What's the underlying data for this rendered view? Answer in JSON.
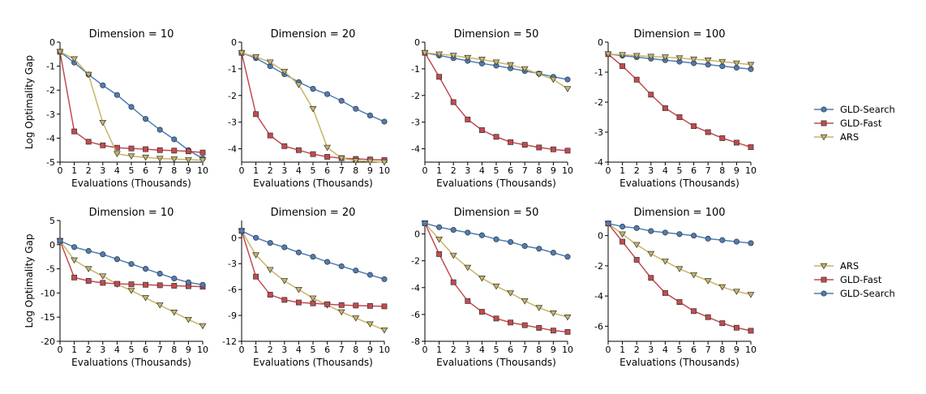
{
  "figure": {
    "series_styles": {
      "GLD-Search": {
        "color": "#4f7cb5",
        "marker": "circle"
      },
      "GLD-Fast": {
        "color": "#c34a4f",
        "marker": "square"
      },
      "ARS": {
        "color": "#c8b468",
        "marker": "triangle"
      }
    },
    "legends": [
      {
        "row": 0,
        "entries": [
          "GLD-Search",
          "GLD-Fast",
          "ARS"
        ]
      },
      {
        "row": 1,
        "entries": [
          "ARS",
          "GLD-Fast",
          "GLD-Search"
        ]
      }
    ]
  },
  "chart_data": [
    {
      "type": "line",
      "row": 0,
      "col": 0,
      "title": "Dimension = 10",
      "xlabel": "Evaluations (Thousands)",
      "ylabel": "Log Optimality Gap",
      "xlim": [
        0,
        10
      ],
      "ylim": [
        -5,
        0
      ],
      "xticks": [
        0,
        1,
        2,
        3,
        4,
        5,
        6,
        7,
        8,
        9,
        10
      ],
      "yticks": [
        0,
        -1,
        -2,
        -3,
        -4,
        -5
      ],
      "x": [
        0,
        1,
        2,
        3,
        4,
        5,
        6,
        7,
        8,
        9,
        10
      ],
      "series": [
        {
          "name": "GLD-Search",
          "values": [
            -0.4,
            -0.85,
            -1.35,
            -1.8,
            -2.2,
            -2.7,
            -3.2,
            -3.65,
            -4.05,
            -4.5,
            -4.85
          ]
        },
        {
          "name": "GLD-Fast",
          "values": [
            -0.4,
            -3.72,
            -4.15,
            -4.3,
            -4.4,
            -4.43,
            -4.46,
            -4.5,
            -4.52,
            -4.55,
            -4.6
          ]
        },
        {
          "name": "ARS",
          "values": [
            -0.4,
            -0.7,
            -1.35,
            -3.35,
            -4.65,
            -4.75,
            -4.8,
            -4.85,
            -4.87,
            -4.9,
            -4.92
          ]
        }
      ]
    },
    {
      "type": "line",
      "row": 0,
      "col": 1,
      "title": "Dimension = 20",
      "xlabel": "Evaluations (Thousands)",
      "ylabel": "",
      "xlim": [
        0,
        10
      ],
      "ylim": [
        -4.5,
        0
      ],
      "xticks": [
        0,
        1,
        2,
        3,
        4,
        5,
        6,
        7,
        8,
        9,
        10
      ],
      "yticks": [
        0,
        -1,
        -2,
        -3,
        -4
      ],
      "x": [
        0,
        1,
        2,
        3,
        4,
        5,
        6,
        7,
        8,
        9,
        10
      ],
      "series": [
        {
          "name": "GLD-Search",
          "values": [
            -0.4,
            -0.6,
            -0.9,
            -1.2,
            -1.5,
            -1.75,
            -1.95,
            -2.2,
            -2.5,
            -2.75,
            -2.98
          ]
        },
        {
          "name": "GLD-Fast",
          "values": [
            -0.4,
            -2.7,
            -3.5,
            -3.9,
            -4.05,
            -4.2,
            -4.3,
            -4.35,
            -4.38,
            -4.4,
            -4.42
          ]
        },
        {
          "name": "ARS",
          "values": [
            -0.4,
            -0.55,
            -0.75,
            -1.1,
            -1.6,
            -2.5,
            -3.95,
            -4.35,
            -4.45,
            -4.47,
            -4.5
          ]
        }
      ]
    },
    {
      "type": "line",
      "row": 0,
      "col": 2,
      "title": "Dimension = 50",
      "xlabel": "Evaluations (Thousands)",
      "ylabel": "",
      "xlim": [
        0,
        10
      ],
      "ylim": [
        -4.5,
        0
      ],
      "xticks": [
        0,
        1,
        2,
        3,
        4,
        5,
        6,
        7,
        8,
        9,
        10
      ],
      "yticks": [
        0,
        -1,
        -2,
        -3,
        -4
      ],
      "x": [
        0,
        1,
        2,
        3,
        4,
        5,
        6,
        7,
        8,
        9,
        10
      ],
      "series": [
        {
          "name": "GLD-Search",
          "values": [
            -0.4,
            -0.5,
            -0.6,
            -0.7,
            -0.8,
            -0.88,
            -0.98,
            -1.08,
            -1.18,
            -1.3,
            -1.4
          ]
        },
        {
          "name": "GLD-Fast",
          "values": [
            -0.4,
            -1.3,
            -2.25,
            -2.9,
            -3.3,
            -3.55,
            -3.75,
            -3.85,
            -3.95,
            -4.02,
            -4.07
          ]
        },
        {
          "name": "ARS",
          "values": [
            -0.4,
            -0.45,
            -0.5,
            -0.58,
            -0.65,
            -0.75,
            -0.85,
            -1.0,
            -1.2,
            -1.4,
            -1.75
          ]
        }
      ]
    },
    {
      "type": "line",
      "row": 0,
      "col": 3,
      "title": "Dimension = 100",
      "xlabel": "Evaluations (Thousands)",
      "ylabel": "",
      "xlim": [
        0,
        10
      ],
      "ylim": [
        -4,
        0
      ],
      "xticks": [
        0,
        1,
        2,
        3,
        4,
        5,
        6,
        7,
        8,
        9,
        10
      ],
      "yticks": [
        0,
        -1,
        -2,
        -3,
        -4
      ],
      "x": [
        0,
        1,
        2,
        3,
        4,
        5,
        6,
        7,
        8,
        9,
        10
      ],
      "series": [
        {
          "name": "GLD-Search",
          "values": [
            -0.4,
            -0.45,
            -0.5,
            -0.55,
            -0.6,
            -0.65,
            -0.7,
            -0.75,
            -0.8,
            -0.85,
            -0.9
          ]
        },
        {
          "name": "GLD-Fast",
          "values": [
            -0.4,
            -0.8,
            -1.25,
            -1.75,
            -2.2,
            -2.5,
            -2.8,
            -3.0,
            -3.2,
            -3.35,
            -3.5
          ]
        },
        {
          "name": "ARS",
          "values": [
            -0.4,
            -0.42,
            -0.45,
            -0.48,
            -0.5,
            -0.53,
            -0.57,
            -0.6,
            -0.65,
            -0.7,
            -0.75
          ]
        }
      ]
    },
    {
      "type": "line",
      "row": 1,
      "col": 0,
      "title": "Dimension = 10",
      "xlabel": "Evaluations (Thousands)",
      "ylabel": "Log Optimality Gap",
      "xlim": [
        0,
        10
      ],
      "ylim": [
        -20,
        5
      ],
      "xticks": [
        0,
        1,
        2,
        3,
        4,
        5,
        6,
        7,
        8,
        9,
        10
      ],
      "yticks": [
        5,
        0,
        -5,
        -10,
        -15,
        -20
      ],
      "x": [
        0,
        1,
        2,
        3,
        4,
        5,
        6,
        7,
        8,
        9,
        10
      ],
      "series": [
        {
          "name": "ARS",
          "values": [
            0.8,
            -3.2,
            -5.0,
            -6.5,
            -8.2,
            -9.5,
            -11.0,
            -12.5,
            -14.0,
            -15.5,
            -16.8
          ]
        },
        {
          "name": "GLD-Fast",
          "values": [
            0.8,
            -6.8,
            -7.5,
            -7.9,
            -8.1,
            -8.2,
            -8.3,
            -8.4,
            -8.5,
            -8.6,
            -8.7
          ]
        },
        {
          "name": "GLD-Search",
          "values": [
            0.8,
            -0.5,
            -1.3,
            -2.0,
            -3.0,
            -4.0,
            -5.0,
            -6.0,
            -7.0,
            -7.8,
            -8.3
          ]
        }
      ]
    },
    {
      "type": "line",
      "row": 1,
      "col": 1,
      "title": "Dimension = 20",
      "xlabel": "Evaluations (Thousands)",
      "ylabel": "",
      "xlim": [
        0,
        10
      ],
      "ylim": [
        -12,
        2
      ],
      "xticks": [
        0,
        1,
        2,
        3,
        4,
        5,
        6,
        7,
        8,
        9,
        10
      ],
      "yticks": [
        0,
        -3,
        -6,
        -9,
        -12
      ],
      "x": [
        0,
        1,
        2,
        3,
        4,
        5,
        6,
        7,
        8,
        9,
        10
      ],
      "series": [
        {
          "name": "ARS",
          "values": [
            0.8,
            -2.0,
            -3.7,
            -5.0,
            -6.0,
            -7.0,
            -7.8,
            -8.6,
            -9.3,
            -10.0,
            -10.7
          ]
        },
        {
          "name": "GLD-Fast",
          "values": [
            0.8,
            -4.5,
            -6.6,
            -7.2,
            -7.5,
            -7.6,
            -7.7,
            -7.8,
            -7.85,
            -7.9,
            -7.95
          ]
        },
        {
          "name": "GLD-Search",
          "values": [
            0.8,
            0.0,
            -0.6,
            -1.1,
            -1.7,
            -2.2,
            -2.8,
            -3.3,
            -3.8,
            -4.3,
            -4.8
          ]
        }
      ]
    },
    {
      "type": "line",
      "row": 1,
      "col": 2,
      "title": "Dimension = 50",
      "xlabel": "Evaluations (Thousands)",
      "ylabel": "",
      "xlim": [
        0,
        10
      ],
      "ylim": [
        -8,
        1
      ],
      "xticks": [
        0,
        1,
        2,
        3,
        4,
        5,
        6,
        7,
        8,
        9,
        10
      ],
      "yticks": [
        0,
        -2,
        -4,
        -6,
        -8
      ],
      "x": [
        0,
        1,
        2,
        3,
        4,
        5,
        6,
        7,
        8,
        9,
        10
      ],
      "series": [
        {
          "name": "ARS",
          "values": [
            0.8,
            -0.4,
            -1.6,
            -2.5,
            -3.3,
            -3.9,
            -4.4,
            -5.0,
            -5.5,
            -5.9,
            -6.2
          ]
        },
        {
          "name": "GLD-Fast",
          "values": [
            0.8,
            -1.5,
            -3.6,
            -5.0,
            -5.8,
            -6.3,
            -6.6,
            -6.8,
            -7.0,
            -7.2,
            -7.3
          ]
        },
        {
          "name": "GLD-Search",
          "values": [
            0.8,
            0.5,
            0.3,
            0.1,
            -0.1,
            -0.4,
            -0.6,
            -0.9,
            -1.1,
            -1.4,
            -1.7
          ]
        }
      ]
    },
    {
      "type": "line",
      "row": 1,
      "col": 3,
      "title": "Dimension = 100",
      "xlabel": "Evaluations (Thousands)",
      "ylabel": "",
      "xlim": [
        0,
        10
      ],
      "ylim": [
        -7,
        1
      ],
      "xticks": [
        0,
        1,
        2,
        3,
        4,
        5,
        6,
        7,
        8,
        9,
        10
      ],
      "yticks": [
        0,
        -2,
        -4,
        -6
      ],
      "x": [
        0,
        1,
        2,
        3,
        4,
        5,
        6,
        7,
        8,
        9,
        10
      ],
      "series": [
        {
          "name": "ARS",
          "values": [
            0.8,
            0.1,
            -0.6,
            -1.2,
            -1.7,
            -2.2,
            -2.6,
            -3.0,
            -3.4,
            -3.7,
            -3.9
          ]
        },
        {
          "name": "GLD-Fast",
          "values": [
            0.8,
            -0.4,
            -1.6,
            -2.8,
            -3.8,
            -4.4,
            -5.0,
            -5.4,
            -5.8,
            -6.1,
            -6.3
          ]
        },
        {
          "name": "GLD-Search",
          "values": [
            0.8,
            0.6,
            0.5,
            0.3,
            0.2,
            0.1,
            0.0,
            -0.2,
            -0.3,
            -0.4,
            -0.5
          ]
        }
      ]
    }
  ]
}
